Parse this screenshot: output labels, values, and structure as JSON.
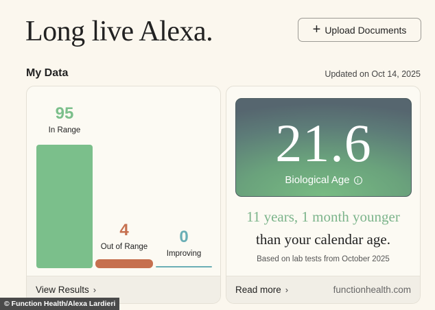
{
  "header": {
    "title": "Long live Alexa.",
    "upload_label": "Upload Documents"
  },
  "section": {
    "title": "My Data",
    "updated": "Updated on Oct 14, 2025"
  },
  "results": {
    "stats": [
      {
        "value": "95",
        "label": "In Range",
        "color": "#7bbf8b"
      },
      {
        "value": "4",
        "label": "Out of Range",
        "color": "#c6704f"
      },
      {
        "value": "0",
        "label": "Improving",
        "color": "#6aaeb5"
      }
    ],
    "footer_link": "View Results"
  },
  "bio": {
    "value": "21.6",
    "label": "Biological Age",
    "younger_text": "11 years, 1 month younger",
    "calendar_text": "than your calendar age.",
    "based_on": "Based on lab tests from October 2025",
    "footer_link": "Read more",
    "footer_domain": "functionhealth.com"
  },
  "credit": "© Function Health/Alexa Lardieri"
}
